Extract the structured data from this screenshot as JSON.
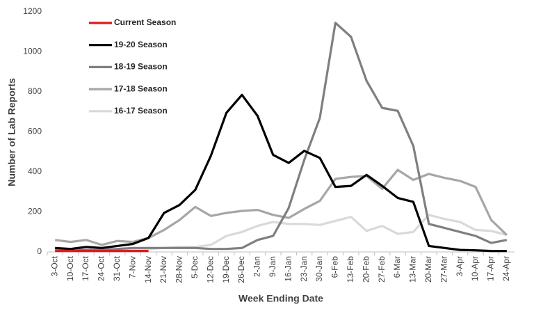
{
  "chart_data": {
    "type": "line",
    "x_label": "Week Ending Date",
    "y_label": "Number of Lab Reports",
    "categories": [
      "3-Oct",
      "10-Oct",
      "17-Oct",
      "24-Oct",
      "31-Oct",
      "7-Nov",
      "14-Nov",
      "21-Nov",
      "28-Nov",
      "5-Dec",
      "12-Dec",
      "19-Dec",
      "26-Dec",
      "2-Jan",
      "9-Jan",
      "16-Jan",
      "23-Jan",
      "30-Jan",
      "6-Feb",
      "13-Feb",
      "20-Feb",
      "27-Feb",
      "6-Mar",
      "13-Mar",
      "20-Mar",
      "27-Mar",
      "3-Apr",
      "10-Apr",
      "17-Apr",
      "24-Apr"
    ],
    "series": [
      {
        "name": "Current Season",
        "color": "#e0191f",
        "values": [
          5,
          5,
          5,
          5,
          5,
          5,
          5,
          null,
          null,
          null,
          null,
          null,
          null,
          null,
          null,
          null,
          null,
          null,
          null,
          null,
          null,
          null,
          null,
          null,
          null,
          null,
          null,
          null,
          null,
          null
        ]
      },
      {
        "name": "19-20 Season",
        "color": "#000000",
        "values": [
          20,
          15,
          25,
          20,
          30,
          40,
          70,
          195,
          235,
          310,
          480,
          695,
          785,
          680,
          485,
          445,
          505,
          470,
          325,
          330,
          385,
          330,
          270,
          250,
          30,
          20,
          10,
          8,
          5,
          5
        ]
      },
      {
        "name": "18-19 Season",
        "color": "#7f7f7f",
        "values": [
          10,
          10,
          10,
          10,
          15,
          20,
          20,
          20,
          20,
          20,
          15,
          15,
          20,
          60,
          80,
          220,
          460,
          670,
          1145,
          1075,
          855,
          720,
          705,
          530,
          140,
          120,
          100,
          80,
          45,
          60
        ]
      },
      {
        "name": "17-18 Season",
        "color": "#a6a6a6",
        "values": [
          60,
          50,
          60,
          35,
          55,
          50,
          70,
          110,
          160,
          225,
          180,
          195,
          205,
          210,
          185,
          170,
          215,
          255,
          365,
          375,
          380,
          315,
          410,
          360,
          390,
          370,
          355,
          325,
          160,
          85
        ]
      },
      {
        "name": "16-17 Season",
        "color": "#d9d9d9",
        "values": [
          10,
          10,
          10,
          10,
          10,
          15,
          15,
          20,
          25,
          25,
          35,
          80,
          100,
          130,
          150,
          140,
          140,
          135,
          155,
          175,
          105,
          130,
          90,
          100,
          185,
          165,
          150,
          110,
          105,
          85
        ]
      }
    ],
    "ylim": [
      0,
      1200
    ],
    "yticks": [
      0,
      200,
      400,
      600,
      800,
      1000,
      1200
    ],
    "grid": false,
    "legend": "upper left"
  }
}
